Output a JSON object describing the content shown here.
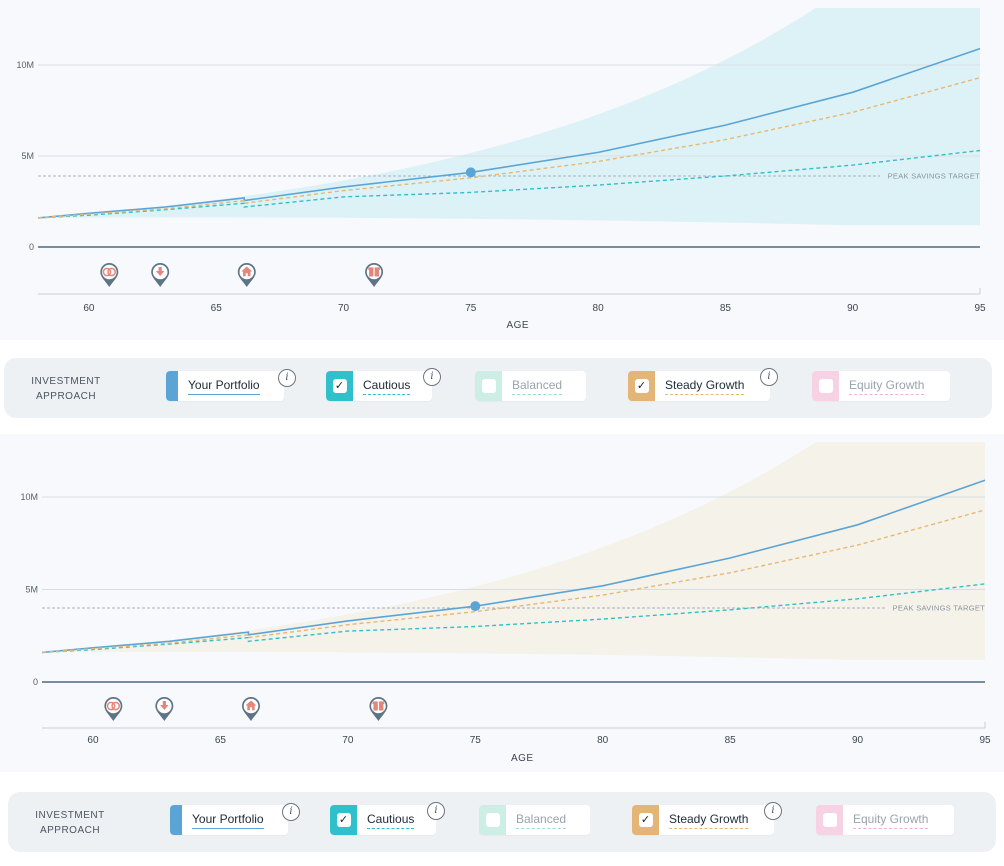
{
  "chart_data": [
    {
      "type": "line",
      "title": "",
      "xlabel": "AGE",
      "ylabel": "",
      "x_ticks": [
        "60",
        "65",
        "70",
        "75",
        "80",
        "85",
        "90",
        "95"
      ],
      "x_tick_values": [
        60,
        65,
        70,
        75,
        80,
        85,
        90,
        95
      ],
      "y_ticks": [
        "0",
        "5M",
        "10M"
      ],
      "y_tick_values": [
        0,
        5,
        10
      ],
      "xlim": [
        58,
        95
      ],
      "ylim": [
        0,
        12.8
      ],
      "target": {
        "label": "PEAK SAVINGS TARGET",
        "value": 3.9
      },
      "marker": {
        "age": 75,
        "value": 4.1
      },
      "band": {
        "name": "Cautious range",
        "color": "#d8f1f4",
        "opacity": 0.85
      },
      "events": [
        {
          "age": 60.8,
          "icon": "rings-icon"
        },
        {
          "age": 62.8,
          "icon": "download-icon"
        },
        {
          "age": 66.2,
          "icon": "house-icon"
        },
        {
          "age": 71.2,
          "icon": "gift-icon"
        }
      ]
    },
    {
      "type": "line",
      "title": "",
      "xlabel": "AGE",
      "ylabel": "",
      "x_ticks": [
        "60",
        "65",
        "70",
        "75",
        "80",
        "85",
        "90",
        "95"
      ],
      "x_tick_values": [
        60,
        65,
        70,
        75,
        80,
        85,
        90,
        95
      ],
      "y_ticks": [
        "0",
        "5M",
        "10M"
      ],
      "y_tick_values": [
        0,
        5,
        10
      ],
      "xlim": [
        58,
        95
      ],
      "ylim": [
        0,
        12.8
      ],
      "target": {
        "label": "PEAK SAVINGS TARGET",
        "value": 4.0
      },
      "marker": {
        "age": 75,
        "value": 4.1
      },
      "band": {
        "name": "Steady Growth range",
        "color": "#f4f1e9",
        "opacity": 0.95
      },
      "events": [
        {
          "age": 60.8,
          "icon": "rings-icon"
        },
        {
          "age": 62.8,
          "icon": "download-icon"
        },
        {
          "age": 66.2,
          "icon": "house-icon"
        },
        {
          "age": 71.2,
          "icon": "gift-icon"
        }
      ]
    }
  ],
  "series": [
    {
      "name": "Your Portfolio",
      "color": "#5ba5d6",
      "dash": "",
      "x": [
        58,
        60,
        63,
        66.1,
        66.1,
        70,
        75,
        80,
        85,
        90,
        95
      ],
      "values": [
        1.6,
        1.85,
        2.2,
        2.7,
        2.55,
        3.3,
        4.1,
        5.2,
        6.7,
        8.5,
        10.9
      ]
    },
    {
      "name": "Cautious",
      "color": "#30c0cc",
      "dash": "4,3",
      "x": [
        58,
        60,
        63,
        66.1,
        66.1,
        70,
        75,
        80,
        85,
        90,
        95
      ],
      "values": [
        1.6,
        1.75,
        2.05,
        2.4,
        2.2,
        2.75,
        3.0,
        3.4,
        3.9,
        4.5,
        5.3
      ]
    },
    {
      "name": "Steady Growth",
      "color": "#e6b874",
      "dash": "4,3",
      "x": [
        58,
        60,
        63,
        66.1,
        66.1,
        70,
        75,
        80,
        85,
        90,
        95
      ],
      "values": [
        1.6,
        1.8,
        2.1,
        2.55,
        2.4,
        3.1,
        3.8,
        4.7,
        5.9,
        7.4,
        9.3
      ]
    }
  ],
  "legend": {
    "title_line1": "INVESTMENT",
    "title_line2": "APPROACH",
    "info_glyph": "i",
    "check_glyph": "✓",
    "items": [
      {
        "label": "Your Portfolio",
        "color": "#5ba5d6",
        "underline": "#5ba5d6",
        "checked": false,
        "active": true,
        "info": true,
        "text_color": "#1e2a36"
      },
      {
        "label": "Cautious",
        "color": "#30c0cc",
        "underline": "#30c0cc",
        "checked": true,
        "active": true,
        "info": true,
        "text_color": "#1e2a36"
      },
      {
        "label": "Balanced",
        "color": "#cdeee4",
        "underline": "#9fdcc8",
        "checked": false,
        "active": false,
        "info": false,
        "text_color": "#9aa3ab"
      },
      {
        "label": "Steady Growth",
        "color": "#e3b577",
        "underline": "#e6b874",
        "checked": true,
        "active": true,
        "info": true,
        "text_color": "#1e2a36"
      },
      {
        "label": "Equity Growth",
        "color": "#f7d2e4",
        "underline": "#f1b3d2",
        "checked": false,
        "active": false,
        "info": false,
        "text_color": "#9aa3ab"
      }
    ]
  },
  "colors": {
    "axis": "#2b4f6a",
    "grid": "#d9dde3",
    "target_line": "#a7b2bd",
    "marker": "#5ba5d6",
    "event_pin": "#5d7486",
    "event_icon": "#e4867c"
  }
}
